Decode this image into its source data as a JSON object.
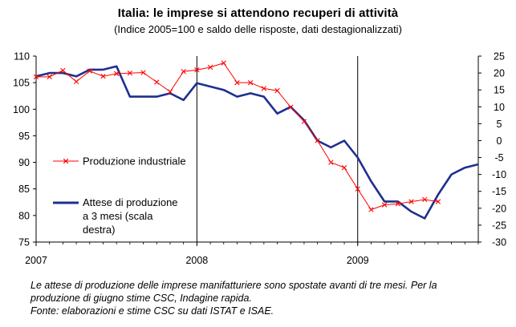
{
  "title": "Italia: le imprese si attendono recuperi  di attività",
  "subtitle": "(Indice 2005=100 e saldo delle risposte, dati destagionalizzati)",
  "notes": [
    "Le attese di produzione delle imprese manifatturiere sono spostate avanti di tre mesi. Per la",
    "produzione di giugno stime CSC, Indagine rapida.",
    "Fonte: elaborazioni e stime CSC su dati ISTAT e ISAE."
  ],
  "chart_data": {
    "type": "line",
    "x_range": [
      0,
      33
    ],
    "x_ticks": [
      {
        "x": 0,
        "label": "2007"
      },
      {
        "x": 12,
        "label": "2008"
      },
      {
        "x": 24,
        "label": "2009"
      }
    ],
    "year_separators": [
      12,
      24
    ],
    "y_left": {
      "min": 75,
      "max": 110,
      "step": 5,
      "ticks": [
        "110",
        "105",
        "100",
        "95",
        "90",
        "85",
        "80",
        "75"
      ]
    },
    "y_right": {
      "min": -30,
      "max": 25,
      "step": 5,
      "ticks": [
        "25",
        "20",
        "15",
        "10",
        "5",
        "0",
        "-5",
        "-10",
        "-15",
        "-20",
        "-25",
        "-30"
      ]
    },
    "grid": false,
    "legend": {
      "placement": "center-left"
    },
    "series": [
      {
        "name": "Produzione industriale",
        "axis": "left",
        "color": "#ff0000",
        "marker": "x",
        "x": [
          0,
          1,
          2,
          3,
          4,
          5,
          6,
          7,
          8,
          9,
          10,
          11,
          12,
          13,
          14,
          15,
          16,
          17,
          18,
          19,
          20,
          21,
          22,
          23,
          24,
          25,
          26,
          27,
          28,
          29,
          30
        ],
        "values": [
          106.1,
          106.1,
          107.3,
          105.2,
          107.2,
          106.2,
          106.7,
          106.8,
          106.9,
          105.1,
          103.3,
          107.1,
          107.4,
          107.9,
          108.7,
          105.0,
          105.0,
          103.9,
          103.5,
          100.4,
          97.7,
          94.1,
          90.0,
          89.0,
          85.0,
          81.1,
          82.0,
          82.2,
          82.6,
          83.0,
          82.6
        ]
      },
      {
        "name": "Attese di produzione a 3 mesi (scala destra)",
        "name_lines": [
          "Attese di produzione",
          "a 3 mesi (scala",
          "destra)"
        ],
        "axis": "right",
        "color": "#1f2f8f",
        "marker": "none",
        "x": [
          0,
          1,
          2,
          3,
          4,
          5,
          6,
          7,
          8,
          9,
          10,
          11,
          12,
          13,
          14,
          15,
          16,
          17,
          18,
          19,
          20,
          21,
          22,
          23,
          24,
          25,
          26,
          27,
          28,
          29,
          30,
          31,
          32,
          33
        ],
        "values": [
          19,
          20,
          20,
          19,
          21,
          21,
          22,
          13,
          13,
          13,
          14,
          12,
          17,
          16,
          15,
          13,
          14,
          13,
          8,
          10,
          6,
          0,
          -2,
          0,
          -5,
          -12,
          -18,
          -18,
          -21,
          -23,
          -16,
          -10,
          -8,
          -7
        ]
      }
    ]
  }
}
